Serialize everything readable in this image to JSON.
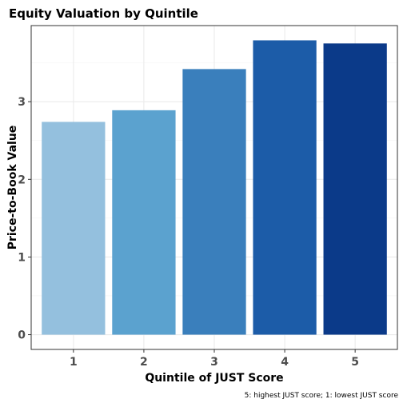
{
  "chart_data": {
    "type": "bar",
    "title": "Equity Valuation by Quintile",
    "xlabel": "Quintile of JUST Score",
    "ylabel": "Price-to-Book Value",
    "caption": "5: highest JUST score; 1: lowest JUST score",
    "categories": [
      "1",
      "2",
      "3",
      "4",
      "5"
    ],
    "values": [
      2.74,
      2.89,
      3.42,
      3.79,
      3.75
    ],
    "colors": [
      "#94c0de",
      "#5ba2cf",
      "#3a7fbc",
      "#1c5ca8",
      "#0b3a89"
    ],
    "ylim": [
      -0.19,
      3.98
    ],
    "yticks": [
      0,
      1,
      2,
      3
    ],
    "grid": true,
    "legend": "none"
  }
}
